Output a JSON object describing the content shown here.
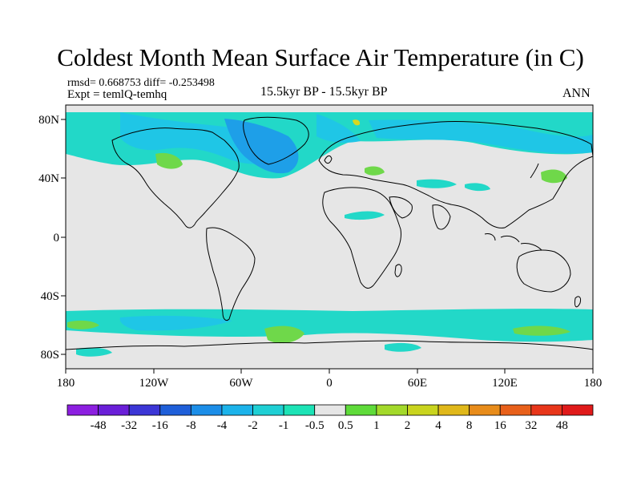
{
  "title": "Coldest Month Mean Surface Air Temperature (in C)",
  "stats": "rmsd= 0.668753 diff= -0.253498",
  "expt": "Expt = temlQ-temhq",
  "period": "15.5kyr BP - 15.5kyr BP",
  "season": "ANN",
  "lat_labels": [
    "80N",
    "40N",
    "0",
    "40S",
    "80S"
  ],
  "lon_labels": [
    "180",
    "120W",
    "60W",
    "0",
    "60E",
    "120E",
    "180"
  ],
  "colorbar": {
    "labels": [
      "-48",
      "-32",
      "-16",
      "-8",
      "-4",
      "-2",
      "-1",
      "-0.5",
      "0.5",
      "1",
      "2",
      "4",
      "8",
      "16",
      "32",
      "48"
    ],
    "colors": [
      "#8c1fe0",
      "#6a1fd8",
      "#3c36d6",
      "#1f5fd9",
      "#1c8ee8",
      "#1cb3ea",
      "#1fcfd4",
      "#1de3b6",
      "#e6e6e6",
      "#5fdb3a",
      "#a3d92a",
      "#c9d41e",
      "#e0b81a",
      "#e88c1a",
      "#e8601a",
      "#e8361a",
      "#e01a1a"
    ]
  },
  "colors": {
    "neutral": "#e6e6e6",
    "light_cyan": "#22d8c8",
    "cyan": "#1fc6e6",
    "blue": "#1e9fe8",
    "green": "#6fd84a",
    "yellow": "#d8d820"
  }
}
